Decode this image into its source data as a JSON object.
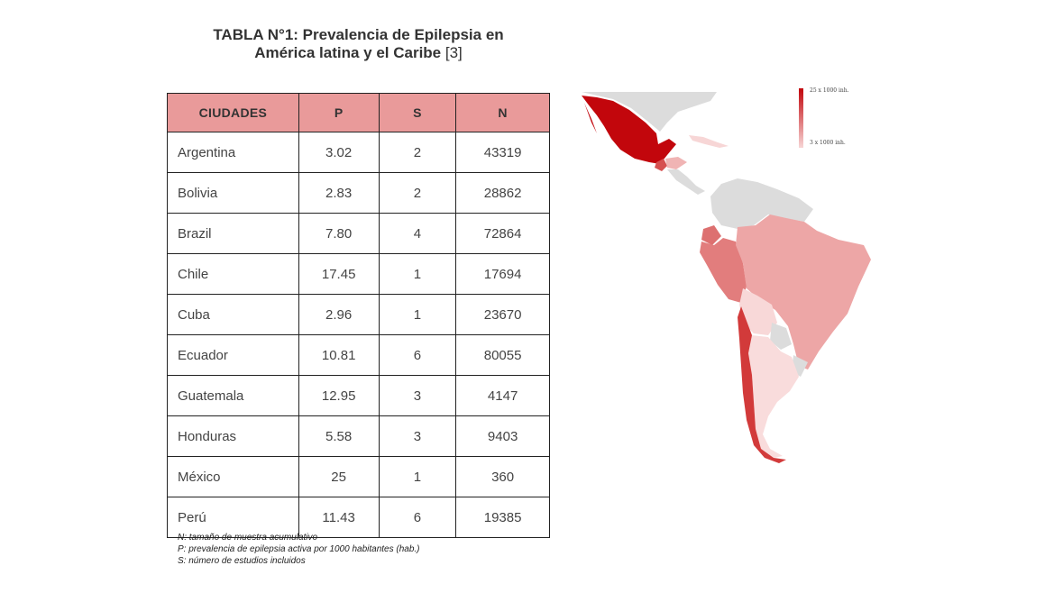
{
  "title": {
    "line1": "TABLA N°1: Prevalencia de Epilepsia en",
    "line2": "América latina y el Caribe",
    "ref": "[3]"
  },
  "table": {
    "headers": [
      "CIUDADES",
      "P",
      "S",
      "N"
    ],
    "rows": [
      [
        "Argentina",
        "3.02",
        "2",
        "43319"
      ],
      [
        "Bolivia",
        "2.83",
        "2",
        "28862"
      ],
      [
        "Brazil",
        "7.80",
        "4",
        "72864"
      ],
      [
        "Chile",
        "17.45",
        "1",
        "17694"
      ],
      [
        "Cuba",
        "2.96",
        "1",
        "23670"
      ],
      [
        "Ecuador",
        "10.81",
        "6",
        "80055"
      ],
      [
        "Guatemala",
        "12.95",
        "3",
        "4147"
      ],
      [
        "Honduras",
        "5.58",
        "3",
        "9403"
      ],
      [
        "México",
        "25",
        "1",
        "360"
      ],
      [
        "Perú",
        "11.43",
        "6",
        "19385"
      ]
    ]
  },
  "notes": [
    "N: tamaño de muestra acumulativo",
    "P: prevalencia de epilepsia activa por 1000 habitantes (hab.)",
    "S: número de estudios incluidos"
  ],
  "legend": {
    "max_label": "25 x 1000 inh.",
    "min_label": "3 x 1000 inh."
  },
  "colors": {
    "header_fill": "#e99a9a",
    "scale_high": "#c2060c",
    "scale_low": "#f7d6d6",
    "no_data": "#dcdcdc"
  }
}
